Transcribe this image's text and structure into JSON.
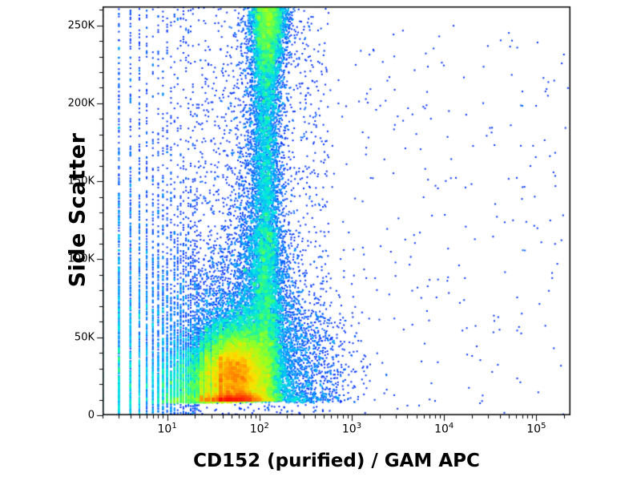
{
  "figure": {
    "background": "#ffffff",
    "border_color": "#000000",
    "text_color": "#000000"
  },
  "chart_data": {
    "type": "scatter",
    "subtype": "flow-cytometry-pseudocolor-density-dot-plot",
    "title": "",
    "xlabel": "CD152 (purified) / GAM APC",
    "ylabel": "Side Scatter",
    "x_scale": "log10",
    "x_domain_log10": [
      0.3,
      5.37
    ],
    "y_domain": [
      0,
      262144
    ],
    "grid": false,
    "legend": false,
    "x_ticks": [
      {
        "log10": 1,
        "base": "10",
        "exp": "1"
      },
      {
        "log10": 2,
        "base": "10",
        "exp": "2"
      },
      {
        "log10": 3,
        "base": "10",
        "exp": "3"
      },
      {
        "log10": 4,
        "base": "10",
        "exp": "4"
      },
      {
        "log10": 5,
        "base": "10",
        "exp": "5"
      }
    ],
    "y_ticks": [
      {
        "value": 0,
        "label": "0"
      },
      {
        "value": 50000,
        "label": "50K"
      },
      {
        "value": 100000,
        "label": "100K"
      },
      {
        "value": 150000,
        "label": "150K"
      },
      {
        "value": 200000,
        "label": "200K"
      },
      {
        "value": 250000,
        "label": "250K"
      }
    ],
    "seed": 1337,
    "integer_binning_below": 40,
    "palette": [
      "#00008f",
      "#0020ff",
      "#0060ff",
      "#00a8ff",
      "#00e8e0",
      "#40ff70",
      "#a0ff20",
      "#ffe000",
      "#ff7000",
      "#ff1000"
    ],
    "populations": [
      {
        "name": "main-core",
        "kind": "gaussian",
        "n": 26000,
        "cx": 1.74,
        "cy": 25000,
        "sx": 0.2,
        "sy": 15000,
        "ylo": 9000
      },
      {
        "name": "core-halo",
        "kind": "gaussian",
        "n": 5000,
        "cx": 1.8,
        "cy": 40000,
        "sx": 0.34,
        "sy": 32000,
        "ylo": 9000
      },
      {
        "name": "left-tail",
        "kind": "gaussian",
        "n": 4000,
        "cx": 1.35,
        "cy": 20000,
        "sx": 0.25,
        "sy": 12000,
        "ylo": 8000
      },
      {
        "name": "vertical-plume",
        "kind": "column",
        "n": 6500,
        "cx": 2.07,
        "sx": 0.075,
        "ymin": 15000,
        "ymax": 262144
      },
      {
        "name": "plume-base",
        "kind": "column",
        "n": 2500,
        "cx": 2.05,
        "sx": 0.14,
        "ymin": 10000,
        "ymax": 120000
      },
      {
        "name": "plume-mid",
        "kind": "gaussian",
        "n": 1500,
        "cx": 1.98,
        "cy": 130000,
        "sx": 0.17,
        "sy": 60000
      },
      {
        "name": "plume-top-pileup",
        "kind": "gaussian",
        "n": 3000,
        "cx": 2.1,
        "cy": 252000,
        "sx": 0.1,
        "sy": 22000
      },
      {
        "name": "background-noise",
        "kind": "uniform",
        "n": 2200,
        "x0": 0.3,
        "x1": 2.75,
        "ymin": 0,
        "ymax": 262144
      },
      {
        "name": "low-x-fence",
        "kind": "halfcolumn",
        "n": 2600,
        "x0": 0.3,
        "x1": 1.35,
        "yscale": 70000
      },
      {
        "name": "right-low-tail",
        "kind": "gaussian",
        "n": 1200,
        "cx": 2.45,
        "cy": 30000,
        "sx": 0.3,
        "sy": 25000,
        "ylo": 8000
      },
      {
        "name": "sparse-high-x",
        "kind": "uniform",
        "n": 260,
        "x0": 2.6,
        "x1": 5.35,
        "ymin": 0,
        "ymax": 250000
      }
    ]
  }
}
